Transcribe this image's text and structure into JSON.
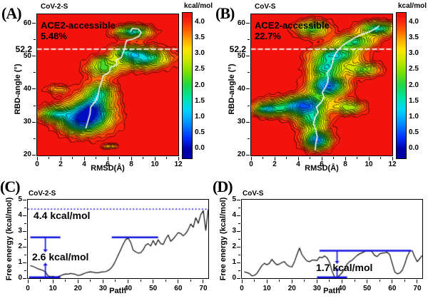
{
  "colorbar": {
    "title": "kcal/mol",
    "ticks": [
      "4.0",
      "3.5",
      "3.0",
      "2.5",
      "2.0",
      "1.5",
      "1.0",
      "0.5",
      "0.0"
    ]
  },
  "panelA": {
    "label": "(A)",
    "title": "CoV-2-S",
    "ace_line1": "ACE2-accessible",
    "ace_line2": "5.48%",
    "ytick_special": "52.2",
    "xlabel": "RMSD(Å)",
    "ylabel": "RBD-angle (°)"
  },
  "panelB": {
    "label": "(B)",
    "title": "CoV-S",
    "ace_line1": "ACE2-accessible",
    "ace_line2": "22.7%",
    "ytick_special": "52.2",
    "xlabel": "RMSD(Å)",
    "ylabel": "RBD-angle (°)"
  },
  "panelC": {
    "label": "(C)",
    "title": "CoV-2-S",
    "xlabel": "Path",
    "ylabel": "Free energy (kcal/mol)",
    "ann_top": "4.4 kcal/mol",
    "ann_low": "2.6 kcal/mol"
  },
  "panelD": {
    "label": "(D)",
    "title": "CoV-S",
    "xlabel": "Path",
    "ylabel": "Free energy (kcal/mol)",
    "ann": "1.7 kcal/mol"
  },
  "accent_colors": {
    "annotation_blue": "#1414e0",
    "background_red": "#f21409",
    "dashed_line_white": "#ffffff",
    "path_line": "#f2f2f2"
  },
  "chart_data": [
    {
      "id": "A",
      "type": "heatmap",
      "title": "CoV-2-S",
      "xlabel": "RMSD(Å)",
      "ylabel": "RBD-angle (°)",
      "xlim": [
        0,
        12
      ],
      "ylim": [
        19.8,
        62.8
      ],
      "xticks": [
        0,
        2,
        4,
        6,
        8,
        10,
        12
      ],
      "xminor": [
        1,
        3,
        5,
        7,
        9,
        11
      ],
      "yticks": [
        20,
        30,
        40,
        50,
        60
      ],
      "yminor": [
        25,
        35,
        45,
        55
      ],
      "colorbar_label": "kcal/mol",
      "colorbar_ticks": [
        4.0,
        3.5,
        3.0,
        2.5,
        2.0,
        1.5,
        1.0,
        0.5,
        0.0
      ],
      "threshold_line": {
        "y": 52.2,
        "label": "52.2",
        "style": "white-dashed"
      },
      "annotation": "ACE2-accessible 5.48%",
      "free_energy_max": 4.2,
      "basins_est": [
        {
          "x": 4.3,
          "y": 32.0,
          "sx": 1.5,
          "sy": 3.6,
          "depth": 3.3
        },
        {
          "x": 4.6,
          "y": 33.5,
          "sx": 0.85,
          "sy": 2.2,
          "depth": 1.5
        },
        {
          "x": 3.4,
          "y": 29.5,
          "sx": 1.0,
          "sy": 2.0,
          "depth": 1.5
        },
        {
          "x": 5.3,
          "y": 39.0,
          "sx": 0.9,
          "sy": 2.4,
          "depth": 2.4
        },
        {
          "x": 5.6,
          "y": 46.5,
          "sx": 1.0,
          "sy": 1.8,
          "depth": 2.2
        },
        {
          "x": 5.5,
          "y": 49.0,
          "sx": 0.55,
          "sy": 0.9,
          "depth": 0.9
        },
        {
          "x": 9.0,
          "y": 49.5,
          "sx": 1.5,
          "sy": 2.2,
          "depth": 3.1
        },
        {
          "x": 7.5,
          "y": 51.5,
          "sx": 0.9,
          "sy": 1.3,
          "depth": 1.6
        },
        {
          "x": 8.1,
          "y": 57.5,
          "sx": 1.05,
          "sy": 1.35,
          "depth": 3.0
        },
        {
          "x": 1.4,
          "y": 32.5,
          "sx": 0.95,
          "sy": 1.6,
          "depth": 2.3
        },
        {
          "x": 6.2,
          "y": 22.6,
          "sx": 0.5,
          "sy": 0.55,
          "depth": 1.1
        },
        {
          "x": 1.7,
          "y": 40.0,
          "sx": 0.7,
          "sy": 1.0,
          "depth": 1.0
        }
      ],
      "path_line": [
        [
          4.15,
          28.2
        ],
        [
          4.3,
          30
        ],
        [
          4.5,
          32.5
        ],
        [
          4.55,
          34.5
        ],
        [
          5.0,
          36.5
        ],
        [
          5.2,
          38.5
        ],
        [
          5.3,
          40.5
        ],
        [
          5.5,
          42.5
        ],
        [
          5.6,
          44
        ],
        [
          6.15,
          45.2
        ],
        [
          6.25,
          46.6
        ],
        [
          6.75,
          47.4
        ],
        [
          6.7,
          48.8
        ],
        [
          7.15,
          49.6
        ],
        [
          7.3,
          51
        ],
        [
          7.45,
          52.3
        ],
        [
          7.5,
          53.6
        ],
        [
          7.6,
          54.8
        ],
        [
          8.2,
          55.3
        ],
        [
          8.65,
          56.1
        ],
        [
          8.85,
          57.3
        ],
        [
          8.6,
          58.3
        ],
        [
          8.1,
          58.5
        ],
        [
          7.95,
          57.7
        ]
      ]
    },
    {
      "id": "B",
      "type": "heatmap",
      "title": "CoV-S",
      "xlabel": "RMSD(Å)",
      "ylabel": "RBD-angle (°)",
      "xlim": [
        0,
        12
      ],
      "ylim": [
        19.8,
        62.8
      ],
      "xticks": [
        0,
        2,
        4,
        6,
        8,
        10,
        12
      ],
      "xminor": [
        1,
        3,
        5,
        7,
        9,
        11
      ],
      "yticks": [
        20,
        30,
        40,
        50,
        60
      ],
      "yminor": [
        25,
        35,
        45,
        55
      ],
      "colorbar_label": "kcal/mol",
      "colorbar_ticks": [
        4.0,
        3.5,
        3.0,
        2.5,
        2.0,
        1.5,
        1.0,
        0.5,
        0.0
      ],
      "threshold_line": {
        "y": 52.2,
        "label": "52.2",
        "style": "white-dashed"
      },
      "annotation": "ACE2-accessible 22.7%",
      "free_energy_max": 4.2,
      "basins_est": [
        {
          "x": 5.6,
          "y": 24.5,
          "sx": 0.8,
          "sy": 2.0,
          "depth": 3.7
        },
        {
          "x": 5.2,
          "y": 30.5,
          "sx": 0.9,
          "sy": 2.2,
          "depth": 2.5
        },
        {
          "x": 4.8,
          "y": 35.5,
          "sx": 1.1,
          "sy": 2.0,
          "depth": 2.8
        },
        {
          "x": 6.5,
          "y": 41.0,
          "sx": 1.1,
          "sy": 2.3,
          "depth": 3.8
        },
        {
          "x": 6.3,
          "y": 46.5,
          "sx": 1.0,
          "sy": 1.9,
          "depth": 2.6
        },
        {
          "x": 7.2,
          "y": 50.5,
          "sx": 1.4,
          "sy": 1.8,
          "depth": 2.9
        },
        {
          "x": 8.8,
          "y": 54.5,
          "sx": 1.2,
          "sy": 1.6,
          "depth": 2.5
        },
        {
          "x": 10.7,
          "y": 58.5,
          "sx": 1.1,
          "sy": 1.5,
          "depth": 2.9
        },
        {
          "x": 2.8,
          "y": 34.5,
          "sx": 1.6,
          "sy": 2.0,
          "depth": 2.2
        },
        {
          "x": 1.2,
          "y": 33.8,
          "sx": 0.7,
          "sy": 1.2,
          "depth": 1.9
        },
        {
          "x": 5.2,
          "y": 58.5,
          "sx": 1.0,
          "sy": 1.8,
          "depth": 2.3
        },
        {
          "x": 8.3,
          "y": 34.5,
          "sx": 0.9,
          "sy": 1.5,
          "depth": 2.0
        },
        {
          "x": 9.5,
          "y": 46.0,
          "sx": 1.0,
          "sy": 1.5,
          "depth": 2.1
        }
      ],
      "path_line": [
        [
          5.45,
          21.5
        ],
        [
          5.5,
          23.5
        ],
        [
          5.62,
          25.5
        ],
        [
          5.5,
          27.5
        ],
        [
          5.3,
          29.5
        ],
        [
          5.45,
          31.5
        ],
        [
          5.7,
          33
        ],
        [
          5.55,
          34.5
        ],
        [
          5.95,
          36
        ],
        [
          6.2,
          37.5
        ],
        [
          6.05,
          39
        ],
        [
          6.3,
          40.5
        ],
        [
          6.5,
          42
        ],
        [
          6.55,
          43.5
        ],
        [
          6.45,
          45
        ],
        [
          6.8,
          46.5
        ],
        [
          6.9,
          48
        ],
        [
          7.0,
          49.5
        ],
        [
          7.2,
          51
        ],
        [
          7.5,
          52.3
        ],
        [
          7.8,
          53.4
        ],
        [
          8.2,
          54.3
        ],
        [
          8.6,
          55.2
        ],
        [
          9.0,
          56
        ],
        [
          9.5,
          56.8
        ],
        [
          10.0,
          57.4
        ],
        [
          10.45,
          58.2
        ],
        [
          10.85,
          59.2
        ]
      ]
    },
    {
      "id": "C",
      "type": "line",
      "title": "CoV-2-S",
      "xlabel": "Path",
      "ylabel": "Free energy (kcal/mol)",
      "xlim": [
        0,
        72
      ],
      "ylim": [
        0,
        5
      ],
      "xticks": [
        0,
        10,
        20,
        30,
        40,
        50,
        60,
        70
      ],
      "xminor": [
        5,
        15,
        25,
        35,
        45,
        55,
        65
      ],
      "yticks": [
        0,
        1,
        2,
        3,
        4,
        5
      ],
      "yminor": [
        0.5,
        1.5,
        2.5,
        3.5,
        4.5
      ],
      "x_start": 1,
      "values": [
        0.8,
        0.75,
        0.68,
        0.6,
        0.55,
        0.5,
        0.4,
        0.15,
        0.1,
        0.12,
        0.08,
        0.1,
        0.15,
        0.22,
        0.27,
        0.26,
        0.3,
        0.28,
        0.24,
        0.18,
        0.2,
        0.27,
        0.33,
        0.38,
        0.4,
        0.38,
        0.35,
        0.35,
        0.38,
        0.4,
        0.42,
        0.48,
        0.6,
        0.8,
        1.1,
        1.45,
        1.8,
        2.15,
        2.45,
        2.55,
        2.3,
        1.8,
        1.68,
        1.6,
        1.62,
        1.8,
        2.1,
        2.2,
        2.05,
        2.4,
        2.1,
        2.45,
        2.2,
        2.15,
        2.5,
        2.75,
        2.35,
        2.5,
        2.7,
        2.9,
        2.85,
        2.7,
        2.85,
        3.1,
        3.45,
        3.25,
        3.85,
        3.5,
        4.05,
        4.3,
        3.05,
        4.4
      ],
      "dotted_line_y": 4.4,
      "segments": [
        {
          "x1": 1,
          "x2": 13,
          "y": 2.6
        },
        {
          "x1": 33.5,
          "x2": 52,
          "y": 2.6
        },
        {
          "x1": 0.5,
          "x2": 13,
          "y": 0.05
        }
      ],
      "arrows": [
        {
          "x": 7,
          "y1": 2.6,
          "y2": 1.78,
          "dir": "down"
        },
        {
          "x": 7,
          "y1": 0.05,
          "y2": 0.85,
          "dir": "up"
        }
      ],
      "barrier_labels": [
        "4.4 kcal/mol",
        "2.6 kcal/mol"
      ]
    },
    {
      "id": "D",
      "type": "line",
      "title": "CoV-S",
      "xlabel": "Path",
      "ylabel": "Free energy (kcal/mol)",
      "xlim": [
        0,
        72
      ],
      "ylim": [
        0,
        5
      ],
      "xticks": [
        0,
        10,
        20,
        30,
        40,
        50,
        60,
        70
      ],
      "xminor": [
        5,
        15,
        25,
        35,
        45,
        55,
        65
      ],
      "yticks": [
        0,
        1,
        2,
        3,
        4,
        5
      ],
      "yminor": [
        0.5,
        1.5,
        2.5,
        3.5,
        4.5
      ],
      "x_start": 1,
      "values": [
        0.4,
        0.36,
        0.3,
        0.15,
        0.18,
        0.3,
        0.55,
        0.8,
        0.95,
        0.85,
        0.95,
        1.2,
        1.0,
        0.85,
        0.9,
        1.0,
        1.05,
        0.85,
        0.75,
        0.72,
        1.05,
        1.5,
        1.92,
        1.5,
        1.28,
        1.1,
        1.05,
        1.15,
        1.15,
        1.12,
        1.35,
        1.3,
        1.42,
        1.3,
        1.0,
        0.45,
        0.08,
        0.05,
        0.18,
        0.35,
        0.6,
        0.9,
        1.05,
        1.15,
        1.3,
        1.45,
        1.55,
        1.62,
        1.7,
        1.75,
        1.75,
        1.68,
        1.45,
        1.38,
        1.55,
        1.6,
        1.62,
        1.65,
        1.5,
        0.95,
        0.4,
        0.28,
        0.32,
        0.5,
        0.9,
        1.4,
        1.72,
        1.75,
        1.35,
        1.05,
        1.25,
        1.45
      ],
      "segments": [
        {
          "x1": 31,
          "x2": 67.5,
          "y": 1.75
        },
        {
          "x1": 30,
          "x2": 42,
          "y": 0.05
        }
      ],
      "arrows": [
        {
          "x": 38,
          "y1": 1.75,
          "y2": 1.05,
          "dir": "down"
        },
        {
          "x": 38,
          "y1": 0.05,
          "y2": 0.52,
          "dir": "up"
        }
      ],
      "barrier_labels": [
        "1.7 kcal/mol"
      ]
    }
  ]
}
